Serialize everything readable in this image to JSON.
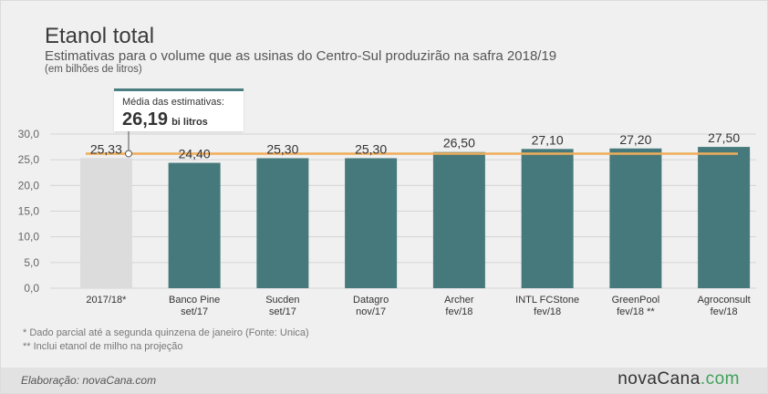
{
  "header": {
    "title": "Etanol total",
    "subtitle": "Estimativas para o volume que as usinas do Centro-Sul produzirão na safra 2018/19",
    "unit_note": "(em bilhões de litros)"
  },
  "callout": {
    "label": "Média das estimativas:",
    "value": "26,19",
    "unit": "bi litros"
  },
  "notes": [
    "* Dado parcial até a segunda quinzena de janeiro (Fonte: Unica)",
    "** Inclui etanol de milho na projeção"
  ],
  "footer": {
    "credit": "Elaboração: novaCana.com",
    "logo_main": "novaCana",
    "logo_suffix": ".com"
  },
  "chart_data": {
    "type": "bar",
    "categories": [
      [
        "2017/18*"
      ],
      [
        "Banco Pine",
        "set/17"
      ],
      [
        "Sucden",
        "set/17"
      ],
      [
        "Datagro",
        "nov/17"
      ],
      [
        "Archer",
        "fev/18"
      ],
      [
        "INTL FCStone",
        "fev/18"
      ],
      [
        "GreenPool",
        "fev/18 **"
      ],
      [
        "Agroconsult",
        "fev/18"
      ]
    ],
    "values": [
      25.33,
      24.4,
      25.3,
      25.3,
      26.5,
      27.1,
      27.2,
      27.5
    ],
    "value_labels": [
      "25,33",
      "24,40",
      "25,30",
      "25,30",
      "26,50",
      "27,10",
      "27,20",
      "27,50"
    ],
    "average_line": 26.19,
    "ylim": [
      0,
      30
    ],
    "yticks": [
      0,
      5,
      10,
      15,
      20,
      25,
      30
    ],
    "ytick_labels": [
      "0,0",
      "5,0",
      "10,0",
      "15,0",
      "20,0",
      "25,0",
      "30,0"
    ],
    "grid": true,
    "colors": {
      "actual_bar": "#dcdcdc",
      "estimate_bar": "#45797b",
      "average_line": "#f0ad5a",
      "grid": "#d4d4d4"
    }
  }
}
